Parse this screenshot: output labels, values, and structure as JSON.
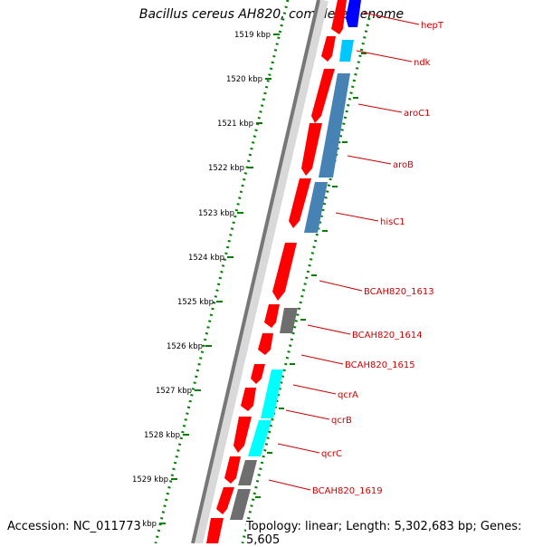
{
  "title": "Bacillus cereus AH820, complete genome",
  "accession": "Accession: NC_011773",
  "topology": "Topology: linear; Length: 5,302,683 bp; Genes: 5,605",
  "colors": {
    "cds": "#ff0000",
    "gene_blue": "#0000ff",
    "gene_cyan": "#00c8ff",
    "gene_steel": "#4682b4",
    "gene_aqua": "#00ffff",
    "gene_grey": "#6e6e6e",
    "label": "#cc0000",
    "scale_ticks": "#008000"
  },
  "ticks": [
    "1519 kbp",
    "1520 kbp",
    "1521 kbp",
    "1522 kbp",
    "1523 kbp",
    "1524 kbp",
    "1525 kbp",
    "1526 kbp",
    "1527 kbp",
    "1528 kbp",
    "1529 kbp",
    "1530 kbp"
  ],
  "gene_labels": [
    "hepT",
    "ndk",
    "aroC1",
    "aroB",
    "hisC1",
    "BCAH820_1613",
    "BCAH820_1614",
    "BCAH820_1615",
    "qcrA",
    "qcrB",
    "qcrC",
    "BCAH820_1619"
  ]
}
